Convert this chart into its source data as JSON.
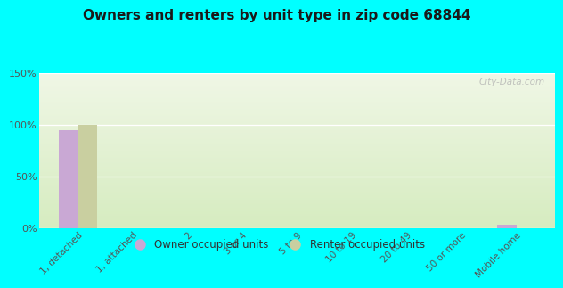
{
  "title": "Owners and renters by unit type in zip code 68844",
  "categories": [
    "1, detached",
    "1, attached",
    "2",
    "3 or 4",
    "5 to 9",
    "10 to 19",
    "20 to 49",
    "50 or more",
    "Mobile home"
  ],
  "owner_values": [
    95,
    0,
    0,
    0,
    0,
    0,
    0,
    0,
    3
  ],
  "renter_values": [
    100,
    0,
    0,
    0,
    0,
    0,
    0,
    0,
    0
  ],
  "owner_color": "#c9a8d4",
  "renter_color": "#c9cfa0",
  "background_color": "#00ffff",
  "ylim": [
    0,
    150
  ],
  "yticks": [
    0,
    50,
    100,
    150
  ],
  "ytick_labels": [
    "0%",
    "50%",
    "100%",
    "150%"
  ],
  "watermark": "City-Data.com",
  "bar_width": 0.35,
  "legend_owner": "Owner occupied units",
  "legend_renter": "Renter occupied units"
}
